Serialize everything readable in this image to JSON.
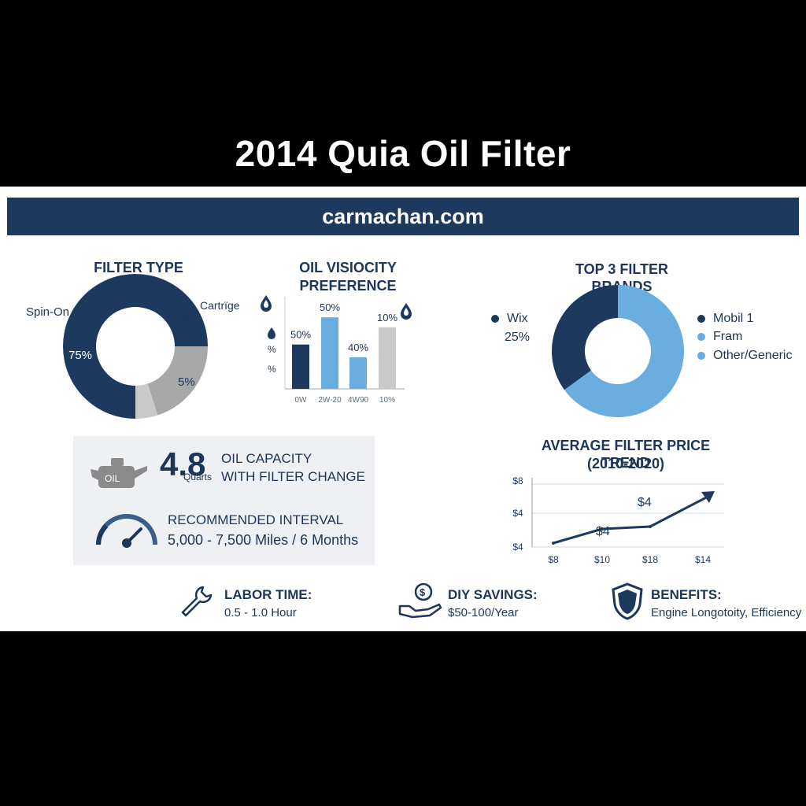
{
  "title": "2014 Quia Oil Filter",
  "banner": "carmachan.com",
  "colors": {
    "navy": "#1d3a5e",
    "light_blue": "#6aaee0",
    "gray": "#a8a8a8",
    "light_gray": "#c9c9c9"
  },
  "filter_type": {
    "heading": "FILTER TYPE USAGE",
    "label_spin_on": "Spin-On",
    "label_cartridge": "Cartrïge",
    "pct_spin_on": "75%",
    "pct_cartridge": "20%",
    "pct_other": "5%"
  },
  "viscosity": {
    "heading_line1": "OIL VISIOCITY",
    "heading_line2": "PREFERENCE",
    "axis_marks": [
      "%",
      "%"
    ]
  },
  "brands": {
    "heading": "TOP 3 FILTER BRANDS",
    "wix_label": "Wix",
    "wix_pct": "25%",
    "legend": [
      "Mobil 1",
      "Fram",
      "Other/Generic"
    ]
  },
  "price_trend": {
    "heading_line1": "AVERAGE FILTER PRICE TREND",
    "heading_line2": "(2010-2020)",
    "point_labels": [
      "$4",
      "$4"
    ]
  },
  "capacity": {
    "value": "4.8",
    "unit": "Quarts",
    "label_line1": "OIL CAPACITY",
    "label_line2": "WITH FILTER CHANGE",
    "oil_can_text": "OIL"
  },
  "interval": {
    "label": "RECOMMENDED INTERVAL",
    "value": "5,000 - 7,500 Miles / 6 Months"
  },
  "footer": {
    "labor_label": "LABOR TIME:",
    "labor_value": "0.5 - 1.0 Hour",
    "diy_label": "DIY SAVINGS:",
    "diy_value": "$50-100/Year",
    "benefits_label": "BENEFITS:",
    "benefits_value": "Engine Longotoity, Efficiency"
  },
  "chart_data": [
    {
      "type": "pie",
      "title": "FILTER TYPE USAGE",
      "categories": [
        "Spin-On",
        "Cartrïge",
        ""
      ],
      "values": [
        75,
        20,
        5
      ]
    },
    {
      "type": "bar",
      "title": "OIL VISIOCITY PREFERENCE",
      "categories": [
        "0W",
        "2W-20",
        "4W90",
        "10%"
      ],
      "values": [
        50,
        50,
        40,
        10
      ],
      "value_labels": [
        "50%",
        "50%",
        "40%",
        "10%"
      ],
      "ylim": [
        0,
        60
      ]
    },
    {
      "type": "pie",
      "title": "TOP 3 FILTER BRANDS",
      "categories": [
        "Mobil 1",
        "Fram",
        "Other/Generic"
      ],
      "values": [
        35,
        65,
        0
      ]
    },
    {
      "type": "line",
      "title": "AVERAGE FILTER PRICE TREND (2010-2020)",
      "x_tick_labels": [
        "$8",
        "$10",
        "$18",
        "$14"
      ],
      "y_tick_labels": [
        "$4",
        "$4",
        "$8"
      ],
      "x": [
        0,
        1,
        2,
        3
      ],
      "values": [
        0.5,
        2.3,
        2.6,
        6.6
      ],
      "ylim": [
        0,
        8
      ]
    }
  ]
}
